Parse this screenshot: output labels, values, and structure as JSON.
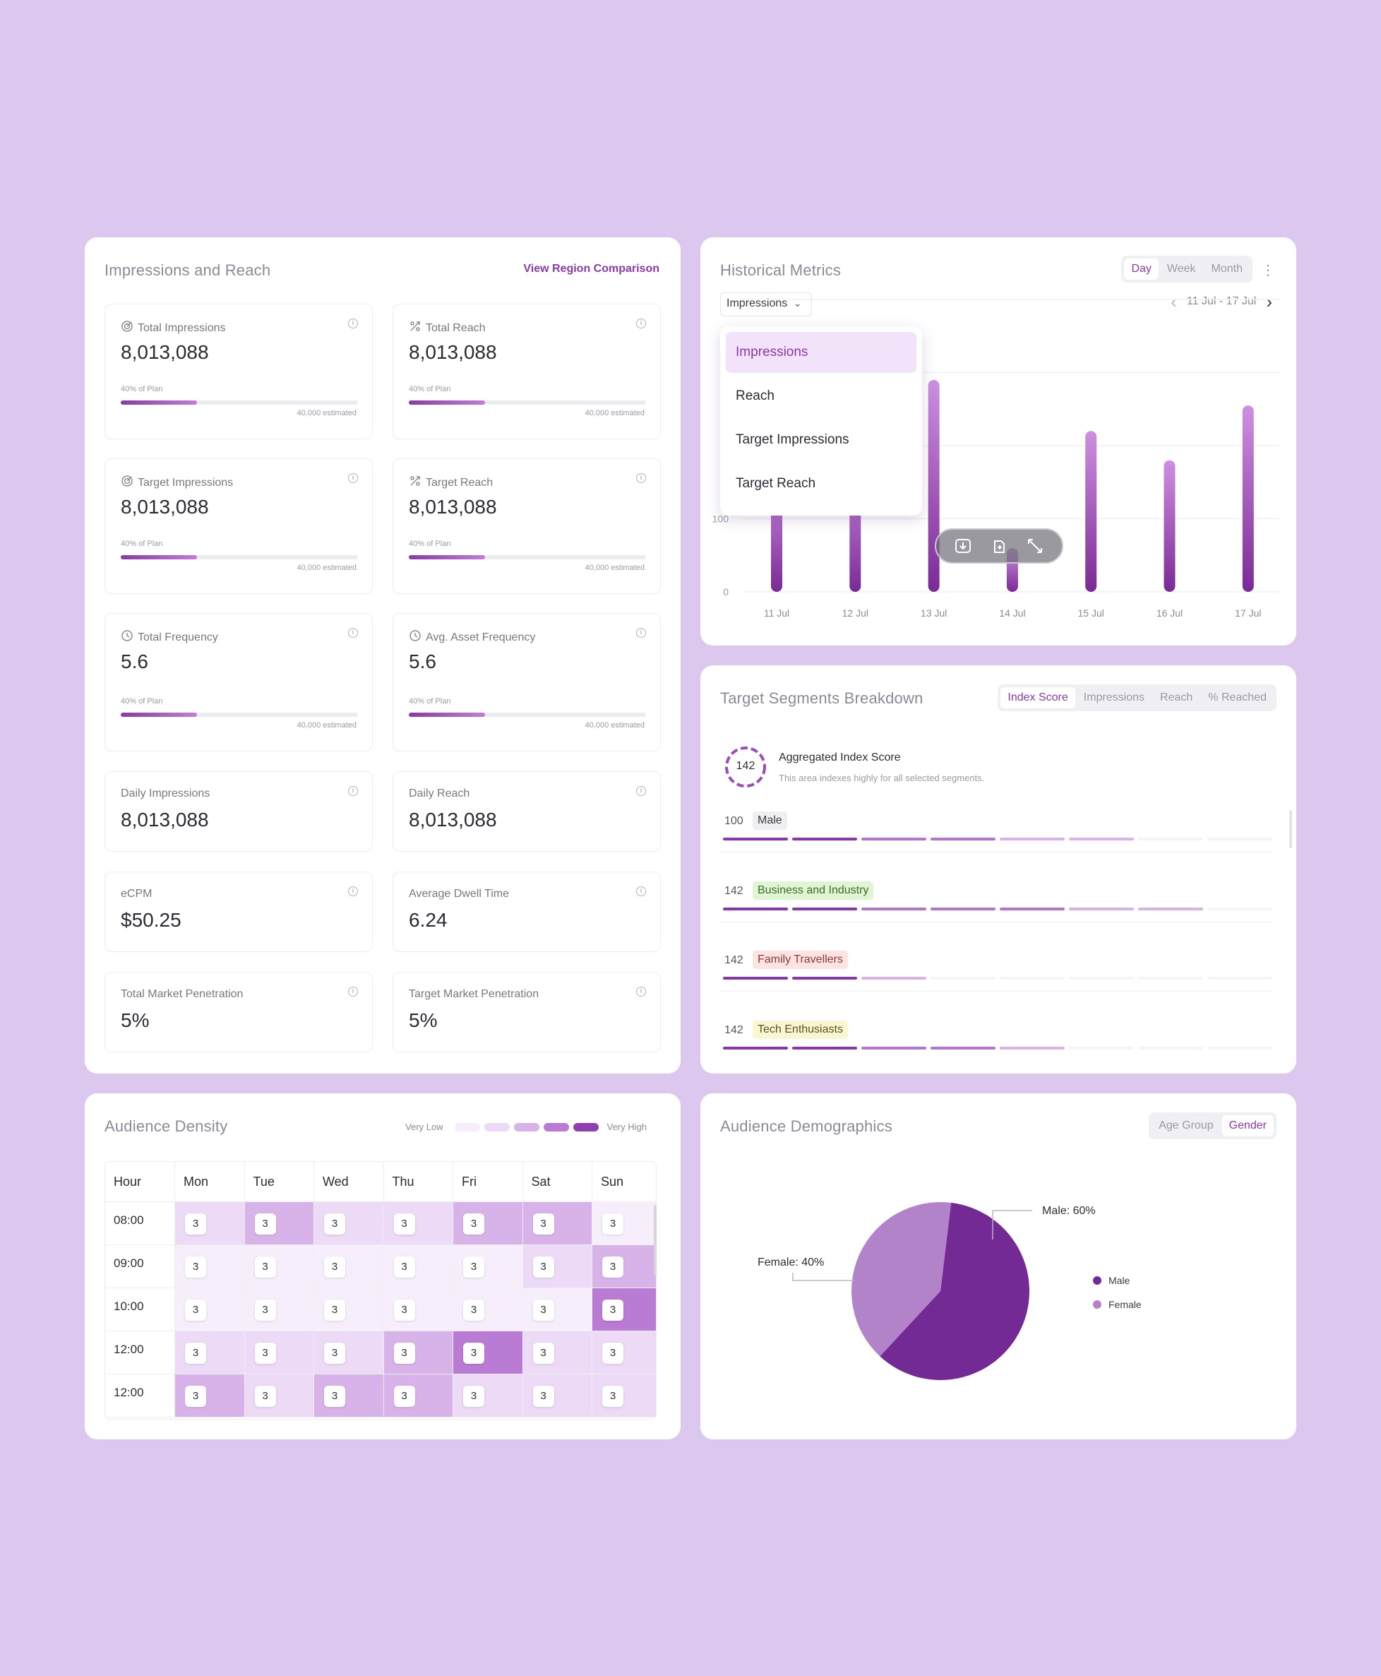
{
  "impressions_card": {
    "title": "Impressions and Reach",
    "link": "View Region Comparison",
    "metrics": [
      {
        "label": "Total Impressions",
        "value": "8,013,088",
        "plan": "40% of Plan",
        "estimated": "40,000 estimated",
        "progress": 0.32,
        "icon": "target-icon"
      },
      {
        "label": "Total Reach",
        "value": "8,013,088",
        "plan": "40% of Plan",
        "estimated": "40,000 estimated",
        "progress": 0.32,
        "icon": "reach-icon"
      },
      {
        "label": "Target Impressions",
        "value": "8,013,088",
        "plan": "40% of Plan",
        "estimated": "40,000 estimated",
        "progress": 0.32,
        "icon": "target-icon"
      },
      {
        "label": "Target Reach",
        "value": "8,013,088",
        "plan": "40% of Plan",
        "estimated": "40,000 estimated",
        "progress": 0.32,
        "icon": "reach-icon"
      },
      {
        "label": "Total Frequency",
        "value": "5.6",
        "plan": "40% of Plan",
        "estimated": "40,000 estimated",
        "progress": 0.32,
        "icon": "clock-icon"
      },
      {
        "label": "Avg. Asset Frequency",
        "value": "5.6",
        "plan": "40% of Plan",
        "estimated": "40,000 estimated",
        "progress": 0.32,
        "icon": "clock-icon"
      }
    ],
    "simple_metrics": [
      {
        "label": "Daily Impressions",
        "value": "8,013,088"
      },
      {
        "label": "Daily Reach",
        "value": "8,013,088"
      },
      {
        "label": "eCPM",
        "value": "$50.25"
      },
      {
        "label": "Average Dwell Time",
        "value": "6.24"
      },
      {
        "label": "Total Market Penetration",
        "value": "5%"
      },
      {
        "label": "Target Market Penetration",
        "value": "5%"
      }
    ],
    "info_glyph": "i"
  },
  "historical": {
    "title": "Historical Metrics",
    "tabs": [
      "Day",
      "Week",
      "Month"
    ],
    "active_tab": "Day",
    "more_glyph": "⋮",
    "dropdown_value": "Impressions",
    "dropdown_arrow": "⌄",
    "date_range": "11 Jul - 17 Jul",
    "prev_glyph": "‹",
    "next_glyph": "›",
    "menu_items": [
      "Impressions",
      "Reach",
      "Target Impressions",
      "Target Reach"
    ],
    "toolbar_icons": [
      "download-icon",
      "copy-icon",
      "expand-icon"
    ]
  },
  "chart_data": {
    "type": "bar",
    "categories": [
      "11 Jul",
      "12 Jul",
      "13 Jul",
      "14 Jul",
      "15 Jul",
      "16 Jul",
      "17 Jul"
    ],
    "values": [
      165,
      180,
      290,
      60,
      220,
      180,
      255
    ],
    "yticks": [
      0,
      100
    ],
    "ylim": [
      0,
      400
    ],
    "grid": true,
    "colors": {
      "bar_top": "#cf90e0",
      "bar_bottom": "#7a2a96"
    }
  },
  "segments": {
    "title": "Target Segments Breakdown",
    "tabs": [
      "Index Score",
      "Impressions",
      "Reach",
      "% Reached"
    ],
    "active_tab": "Index Score",
    "aggregate_score": "142",
    "aggregate_title": "Aggregated Index Score",
    "aggregate_desc": "This area indexes highly for all selected segments.",
    "rows": [
      {
        "score": "100",
        "name": "Male",
        "tag_bg": "#eeeef3",
        "tag_color": "#3a3a44",
        "levels": [
          3,
          3,
          2,
          2,
          1,
          1,
          0,
          0
        ]
      },
      {
        "score": "142",
        "name": "Business and Industry",
        "tag_bg": "#dff5d3",
        "tag_color": "#3d6a2a",
        "levels": [
          3,
          3,
          2,
          2,
          2,
          1,
          1,
          0
        ]
      },
      {
        "score": "142",
        "name": "Family Travellers",
        "tag_bg": "#fde3e1",
        "tag_color": "#8a3a36",
        "levels": [
          3,
          3,
          1,
          0,
          0,
          0,
          0,
          0
        ]
      },
      {
        "score": "142",
        "name": "Tech Enthusiasts",
        "tag_bg": "#fbf6d2",
        "tag_color": "#5a5420",
        "levels": [
          3,
          3,
          2,
          2,
          1,
          0,
          0,
          0
        ]
      }
    ]
  },
  "density": {
    "title": "Audience Density",
    "legend_low": "Very Low",
    "legend_high": "Very High",
    "legend_colors": [
      "#f6eefb",
      "#ecdaf6",
      "#d8b3ea",
      "#b97bd3",
      "#8f3fae"
    ],
    "header": [
      "Hour",
      "Mon",
      "Tue",
      "Wed",
      "Thu",
      "Fri",
      "Sat",
      "Sun"
    ],
    "rows": [
      {
        "hour": "08:00",
        "cells": [
          "3",
          "3",
          "3",
          "3",
          "3",
          "3",
          "3"
        ],
        "levels": [
          1,
          2,
          1,
          1,
          2,
          2,
          0
        ]
      },
      {
        "hour": "09:00",
        "cells": [
          "3",
          "3",
          "3",
          "3",
          "3",
          "3",
          "3"
        ],
        "levels": [
          0,
          0,
          0,
          0,
          0,
          1,
          2
        ]
      },
      {
        "hour": "10:00",
        "cells": [
          "3",
          "3",
          "3",
          "3",
          "3",
          "3",
          "3"
        ],
        "levels": [
          0,
          0,
          0,
          0,
          0,
          0,
          3
        ]
      },
      {
        "hour": "12:00",
        "cells": [
          "3",
          "3",
          "3",
          "3",
          "3",
          "3",
          "3"
        ],
        "levels": [
          1,
          1,
          1,
          2,
          3,
          1,
          1
        ]
      },
      {
        "hour": "12:00",
        "cells": [
          "3",
          "3",
          "3",
          "3",
          "3",
          "3",
          "3"
        ],
        "levels": [
          2,
          1,
          2,
          2,
          1,
          1,
          1
        ]
      }
    ]
  },
  "demographics": {
    "title": "Audience Demographics",
    "tabs": [
      "Age Group",
      "Gender"
    ],
    "active_tab": "Gender",
    "pie": {
      "slices": [
        {
          "name": "Male",
          "value": 60,
          "color": "#742a94",
          "label": "Male: 60%"
        },
        {
          "name": "Female",
          "value": 40,
          "color": "#b383c9",
          "label": "Female: 40%"
        }
      ]
    },
    "legend": [
      "Male",
      "Female"
    ]
  }
}
